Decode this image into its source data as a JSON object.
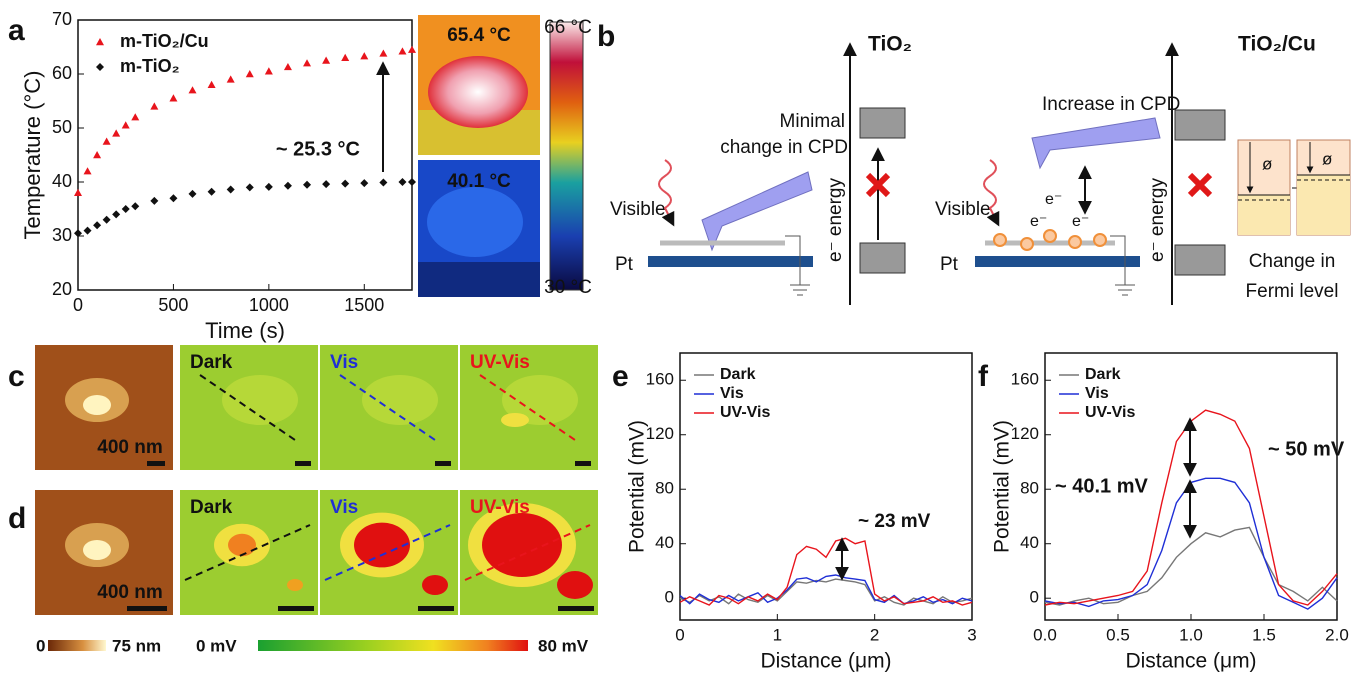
{
  "chart_data": [
    {
      "type": "scatter",
      "xlabel": "Time (s)",
      "ylabel": "Temperature (°C)",
      "xlim": [
        0,
        1750
      ],
      "ylim": [
        20,
        70
      ],
      "xticks": [
        0,
        500,
        1000,
        1500
      ],
      "yticks": [
        20,
        30,
        40,
        50,
        60,
        70
      ],
      "x": [
        0,
        50,
        100,
        150,
        200,
        250,
        300,
        400,
        500,
        600,
        700,
        800,
        900,
        1000,
        1100,
        1200,
        1300,
        1400,
        1500,
        1600,
        1700,
        1750
      ],
      "series": [
        {
          "name": "m-TiO₂/Cu",
          "color": "#e8141c",
          "marker": "triangle",
          "values": [
            38,
            42,
            45,
            47.5,
            49,
            50.5,
            52,
            54,
            55.5,
            57,
            58,
            59,
            60,
            60.5,
            61.3,
            62,
            62.5,
            63,
            63.3,
            63.8,
            64.2,
            64.5
          ]
        },
        {
          "name": "m-TiO₂",
          "color": "#111111",
          "marker": "diamond",
          "values": [
            30.5,
            31,
            32,
            33,
            34,
            35,
            35.5,
            36.5,
            37,
            37.8,
            38.2,
            38.6,
            39,
            39.1,
            39.3,
            39.5,
            39.6,
            39.7,
            39.8,
            39.9,
            40,
            40
          ]
        }
      ],
      "annotations": [
        "~ 25.3 °C"
      ],
      "legend": "upper-left"
    },
    {
      "type": "line",
      "xlabel": "Distance (μm)",
      "ylabel": "Potential (mV)",
      "xlim": [
        0,
        3
      ],
      "ylim": [
        -16,
        180
      ],
      "xticks": [
        0,
        1,
        2,
        3
      ],
      "yticks": [
        0,
        40,
        80,
        120,
        160
      ],
      "x": [
        0,
        0.1,
        0.2,
        0.3,
        0.4,
        0.5,
        0.6,
        0.7,
        0.8,
        0.9,
        1,
        1.1,
        1.2,
        1.3,
        1.4,
        1.5,
        1.6,
        1.7,
        1.8,
        1.9,
        2,
        2.1,
        2.2,
        2.3,
        2.4,
        2.5,
        2.6,
        2.7,
        2.8,
        2.9,
        3
      ],
      "series": [
        {
          "name": "Dark",
          "color": "#777777",
          "values": [
            0,
            -3,
            2,
            -2,
            1,
            -4,
            3,
            -1,
            -3,
            2,
            -2,
            5,
            12,
            11,
            13,
            12,
            14,
            13,
            12,
            10,
            -2,
            1,
            -3,
            -5,
            0,
            -2,
            -4,
            1,
            -3,
            -2,
            0
          ]
        },
        {
          "name": "Vis",
          "color": "#1f2fd6",
          "values": [
            2,
            -4,
            3,
            -1,
            -3,
            2,
            -2,
            1,
            4,
            -3,
            0,
            6,
            14,
            15,
            12,
            16,
            17,
            15,
            14,
            13,
            -1,
            -3,
            2,
            -4,
            -2,
            1,
            -3,
            -1,
            -4,
            0,
            -2
          ]
        },
        {
          "name": "UV-Vis",
          "color": "#e8141c",
          "values": [
            -3,
            1,
            -2,
            -5,
            2,
            0,
            -4,
            1,
            -2,
            3,
            -1,
            8,
            32,
            38,
            36,
            30,
            42,
            44,
            40,
            42,
            3,
            -2,
            1,
            -4,
            -3,
            -2,
            1,
            -3,
            -2,
            -5,
            -3
          ]
        }
      ],
      "annotations": [
        "~ 23 mV"
      ],
      "legend": "upper-left"
    },
    {
      "type": "line",
      "xlabel": "Distance (μm)",
      "ylabel": "Potential (mV)",
      "xlim": [
        0,
        2
      ],
      "ylim": [
        -16,
        180
      ],
      "xticks": [
        {
          "value": 0,
          "label": "0.0"
        },
        0.5,
        {
          "value": 1,
          "label": "1.0"
        },
        1.5,
        {
          "value": 2,
          "label": "2.0"
        }
      ],
      "yticks": [
        0,
        40,
        80,
        120,
        160
      ],
      "x": [
        0,
        0.1,
        0.2,
        0.3,
        0.4,
        0.5,
        0.6,
        0.7,
        0.8,
        0.9,
        1,
        1.1,
        1.2,
        1.3,
        1.4,
        1.5,
        1.6,
        1.7,
        1.8,
        1.9,
        2
      ],
      "series": [
        {
          "name": "Dark",
          "color": "#777777",
          "values": [
            -3,
            -5,
            -2,
            0,
            -4,
            -3,
            2,
            5,
            15,
            30,
            40,
            48,
            45,
            50,
            52,
            30,
            10,
            5,
            -2,
            8,
            -2
          ]
        },
        {
          "name": "Vis",
          "color": "#1f2fd6",
          "values": [
            -2,
            -4,
            -3,
            -6,
            -2,
            -1,
            2,
            10,
            35,
            70,
            85,
            88,
            88,
            85,
            70,
            30,
            2,
            -3,
            -8,
            0,
            15
          ]
        },
        {
          "name": "UV-Vis",
          "color": "#e8141c",
          "values": [
            -5,
            -3,
            -4,
            -2,
            0,
            2,
            5,
            20,
            70,
            115,
            130,
            138,
            135,
            130,
            110,
            60,
            10,
            -2,
            -5,
            5,
            18
          ]
        }
      ],
      "annotations": [
        "~ 50 mV",
        "~ 40.1 mV"
      ],
      "legend": "upper-left"
    }
  ],
  "panel_labels": [
    "a",
    "b",
    "c",
    "d",
    "e",
    "f"
  ],
  "thermal": {
    "high": "65.4 °C",
    "low": "40.1 °C",
    "scale_max": "66 °C",
    "scale_min": "30 °C"
  },
  "diagram": {
    "left": {
      "title": "TiO₂",
      "note": [
        "Minimal",
        "change in CPD"
      ],
      "light": "Visible",
      "electrode": "Pt",
      "axis": "e⁻ energy"
    },
    "right": {
      "title": "TiO₂/Cu",
      "note": "Increase in CPD",
      "light": "Visible",
      "electrons": [
        "e⁻",
        "e⁻",
        "e⁻"
      ],
      "electrode": "Pt",
      "axis": "e⁻ energy",
      "work_function": [
        "ø",
        "ø"
      ],
      "caption": [
        "Change in",
        "Fermi level"
      ]
    }
  },
  "kpfm": {
    "rows": [
      {
        "conditions": [
          "Dark",
          "Vis",
          "UV-Vis"
        ],
        "scale": "400 nm"
      },
      {
        "conditions": [
          "Dark",
          "Vis",
          "UV-Vis"
        ],
        "scale": "400 nm"
      }
    ],
    "height_bar": [
      "0",
      "75 nm"
    ],
    "potential_bar": [
      "0 mV",
      "80 mV"
    ]
  }
}
